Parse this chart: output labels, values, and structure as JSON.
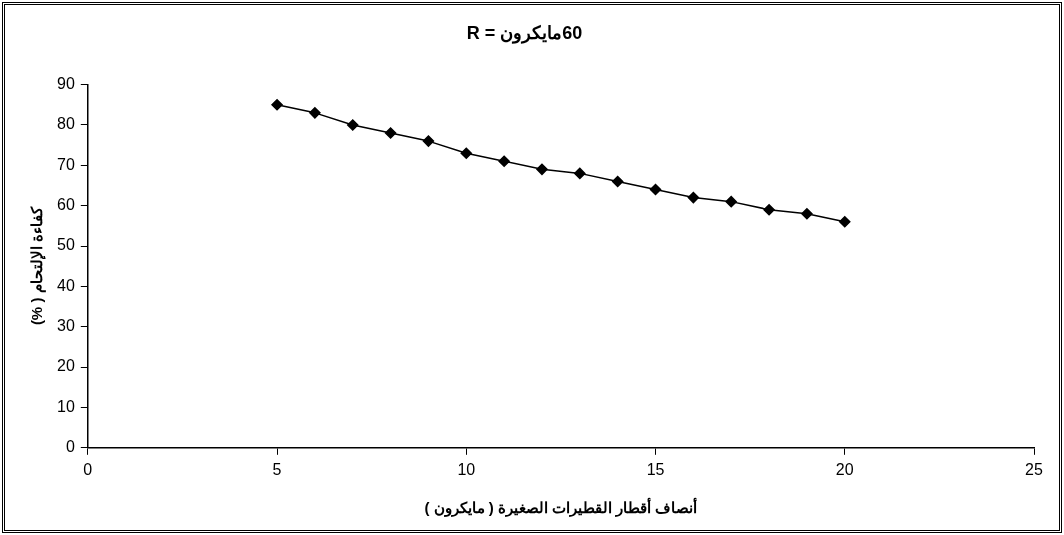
{
  "chart_data": {
    "type": "line",
    "title": "60مايكرون = R",
    "xlabel": "أنصاف أقطار القطيرات الصغيرة ( مايكرون )",
    "ylabel": "كفاءة الإلتحام ( %)",
    "x": [
      5,
      6,
      7,
      8,
      9,
      10,
      11,
      12,
      13,
      14,
      15,
      16,
      17,
      18,
      19,
      20
    ],
    "series": [
      {
        "color": "#000000",
        "values": [
          85,
          83,
          80,
          78,
          76,
          73,
          71,
          69,
          68,
          66,
          64,
          62,
          61,
          59,
          58,
          56
        ]
      }
    ],
    "xlim": [
      0,
      25
    ],
    "xticks": [
      0,
      5,
      10,
      15,
      20,
      25
    ],
    "ylim": [
      0,
      90
    ],
    "yticks": [
      0,
      10,
      20,
      30,
      40,
      50,
      60,
      70,
      80,
      90
    ],
    "grid": false,
    "legend": false,
    "marker": "diamond",
    "line_style": "solid"
  }
}
